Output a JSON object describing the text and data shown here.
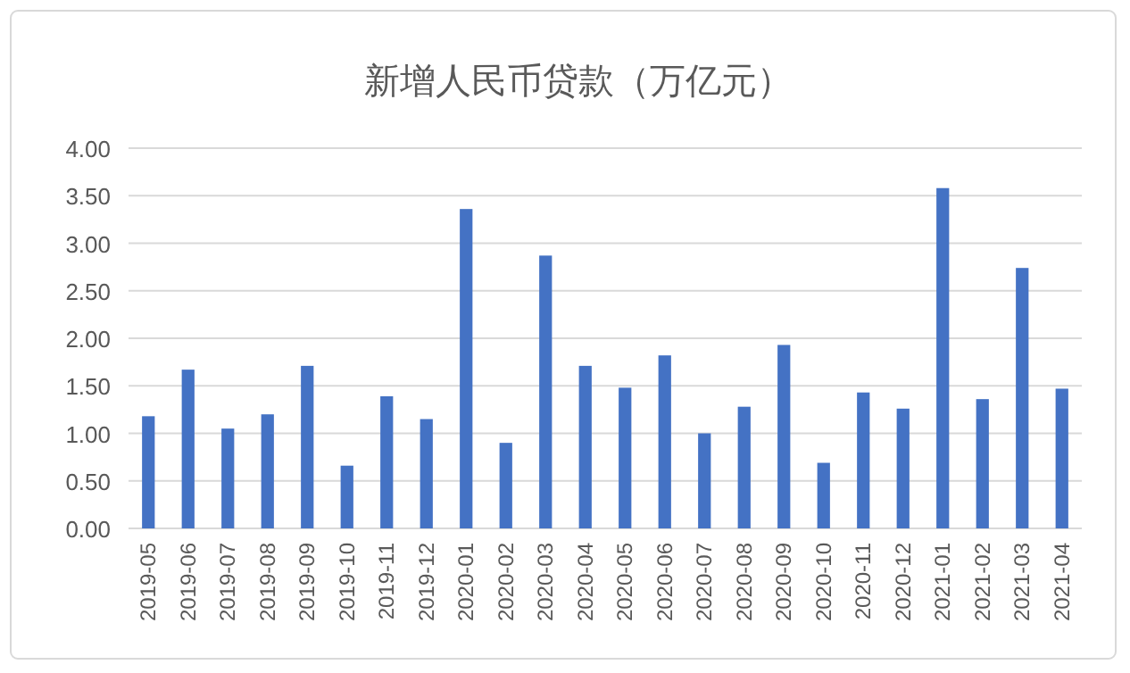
{
  "chart_data": {
    "type": "bar",
    "title": "新增人民币贷款（万亿元）",
    "categories": [
      "2019-05",
      "2019-06",
      "2019-07",
      "2019-08",
      "2019-09",
      "2019-10",
      "2019-11",
      "2019-12",
      "2020-01",
      "2020-02",
      "2020-03",
      "2020-04",
      "2020-05",
      "2020-06",
      "2020-07",
      "2020-08",
      "2020-09",
      "2020-10",
      "2020-11",
      "2020-12",
      "2021-01",
      "2021-02",
      "2021-03",
      "2021-04"
    ],
    "values": [
      1.18,
      1.67,
      1.05,
      1.2,
      1.71,
      0.66,
      1.39,
      1.15,
      3.36,
      0.9,
      2.87,
      1.71,
      1.48,
      1.82,
      1.0,
      1.28,
      1.93,
      0.69,
      1.43,
      1.26,
      3.58,
      1.36,
      2.74,
      1.47
    ],
    "color": "#4472c4",
    "ylim": [
      0,
      4
    ],
    "yticks": [
      {
        "value": 0,
        "label": "0.00"
      },
      {
        "value": 0.5,
        "label": "0.50"
      },
      {
        "value": 1,
        "label": "1.00"
      },
      {
        "value": 1.5,
        "label": "1.50"
      },
      {
        "value": 2,
        "label": "2.00"
      },
      {
        "value": 2.5,
        "label": "2.50"
      },
      {
        "value": 3,
        "label": "3.00"
      },
      {
        "value": 3.5,
        "label": "3.50"
      },
      {
        "value": 4,
        "label": "4.00"
      }
    ],
    "grid": "y"
  }
}
